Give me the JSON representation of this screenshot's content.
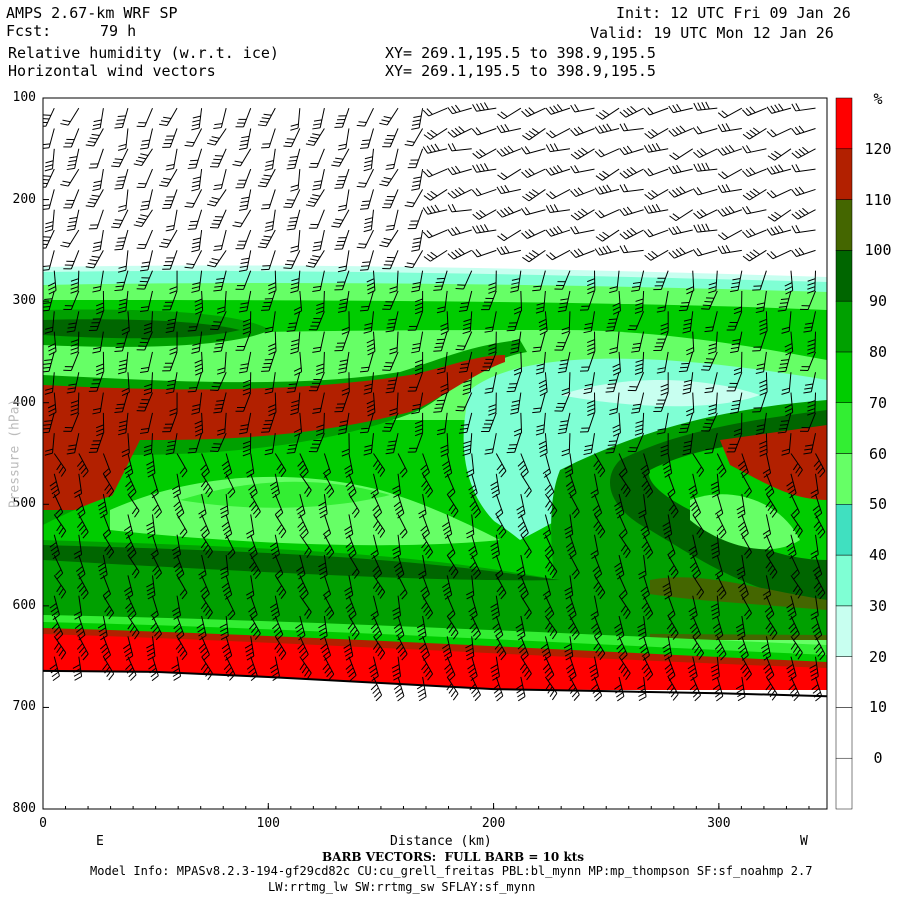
{
  "header": {
    "model": "AMPS 2.67-km WRF SP",
    "fcst_label": "Fcst:",
    "fcst_value": "79 h",
    "field1": "Relative humidity (w.r.t. ice)",
    "field2": "Horizontal wind vectors",
    "xy1": "XY= 269.1,195.5 to 398.9,195.5",
    "xy2": "XY= 269.1,195.5 to 398.9,195.5",
    "init": "Init: 12 UTC Fri 09 Jan 26",
    "valid": "Valid: 19 UTC Mon 12 Jan 26"
  },
  "chart_data": {
    "type": "heatmap",
    "title": "Relative humidity (w.r.t. ice)",
    "xlabel": "Distance (km)",
    "ylabel": "Pressure (hPa)",
    "xlim": [
      0,
      348
    ],
    "ylim": [
      800,
      100
    ],
    "x_ticks": [
      "0",
      "100",
      "200",
      "300"
    ],
    "x_tick_values": [
      0,
      100,
      200,
      300
    ],
    "y_ticks": [
      "100",
      "200",
      "300",
      "400",
      "500",
      "600",
      "700",
      "800"
    ],
    "y_tick_values": [
      100,
      200,
      300,
      400,
      500,
      600,
      700,
      800
    ],
    "x_end_labels": [
      "E",
      "W"
    ],
    "colorbar": {
      "unit": "%",
      "levels": [
        "0",
        "10",
        "20",
        "30",
        "40",
        "50",
        "60",
        "70",
        "80",
        "90",
        "100",
        "110",
        "120"
      ],
      "colors": [
        "#ffffff",
        "#ffffff",
        "#ffffff",
        "#c8fff0",
        "#7fffd4",
        "#40e0c0",
        "#66ff66",
        "#33ee33",
        "#00cc00",
        "#00a000",
        "#006600",
        "#446600",
        "#b22000",
        "#ff0000"
      ]
    },
    "surface_pressure": [
      [
        0,
        664
      ],
      [
        50,
        665
      ],
      [
        100,
        670
      ],
      [
        150,
        676
      ],
      [
        200,
        682
      ],
      [
        250,
        684
      ],
      [
        300,
        686
      ],
      [
        348,
        689
      ]
    ],
    "barbs": "FULL BARB = 10 kts"
  },
  "footer": {
    "barb_note": "BARB VECTORS:  FULL BARB = 10 kts",
    "model_info": "Model Info: MPASv8.2.3-194-gf29cd82c CU:cu_grell_freitas PBL:bl_mynn MP:mp_thompson SF:sf_noahmp 2.7",
    "model_info2": "LW:rrtmg_lw SW:rrtmg_sw SFLAY:sf_mynn"
  }
}
